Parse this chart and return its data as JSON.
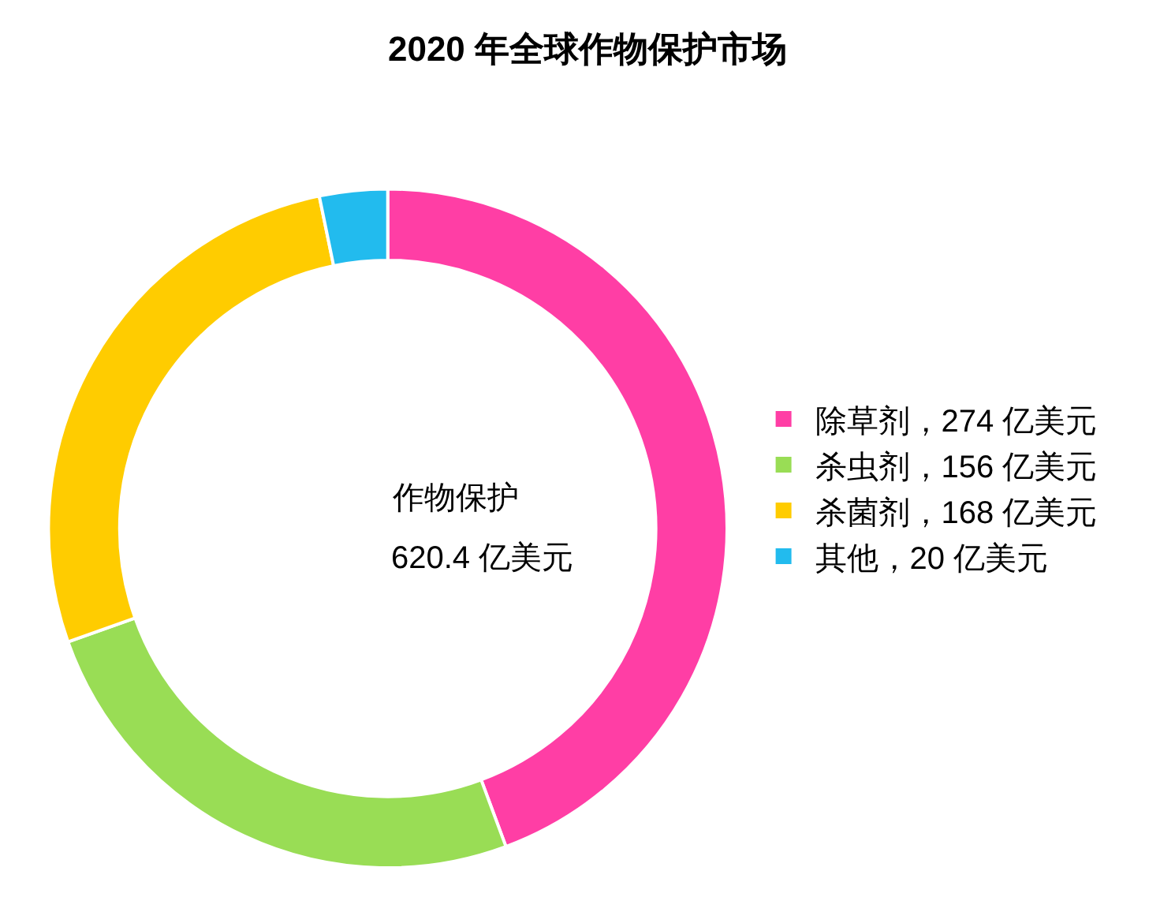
{
  "chart_data": {
    "type": "donut",
    "title": "2020 年全球作物保护市场",
    "categories": [
      "除草剂，274 亿美元",
      "杀虫剂，156 亿美元",
      "杀菌剂，168 亿美元",
      "其他，20 亿美元"
    ],
    "values": [
      274,
      156,
      168,
      20
    ],
    "colors": [
      "#ff3ea5",
      "#99dd55",
      "#ffcc00",
      "#22bbee"
    ],
    "annotations": [
      "作物保护",
      "620.4 亿美元"
    ],
    "legend": "right"
  }
}
